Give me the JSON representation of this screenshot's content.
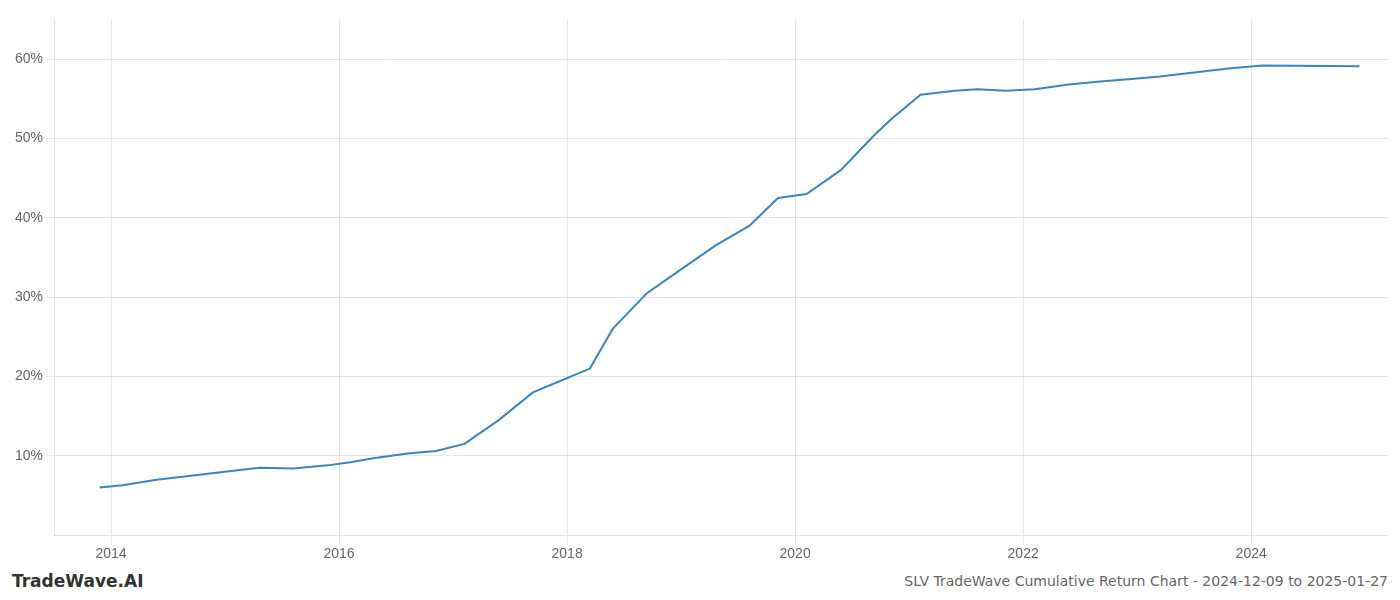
{
  "chart_data": {
    "type": "line",
    "title": "SLV TradeWave Cumulative Return Chart - 2024-12-09 to 2025-01-27",
    "annotations": [
      "TradeWave.AI"
    ],
    "x": [
      2013.9,
      2014.1,
      2014.4,
      2014.7,
      2015.0,
      2015.3,
      2015.6,
      2015.9,
      2016.1,
      2016.3,
      2016.6,
      2016.85,
      2017.1,
      2017.4,
      2017.7,
      2017.95,
      2018.2,
      2018.4,
      2018.7,
      2019.0,
      2019.3,
      2019.6,
      2019.85,
      2020.1,
      2020.4,
      2020.7,
      2020.85,
      2021.1,
      2021.4,
      2021.6,
      2021.85,
      2022.1,
      2022.4,
      2022.7,
      2022.95,
      2023.2,
      2023.5,
      2023.8,
      2024.1,
      2024.95
    ],
    "values": [
      6.0,
      6.3,
      7.0,
      7.5,
      8.0,
      8.5,
      8.4,
      8.8,
      9.2,
      9.7,
      10.3,
      10.6,
      11.5,
      14.5,
      18.0,
      19.5,
      21.0,
      26.0,
      30.5,
      33.5,
      36.5,
      39.0,
      42.5,
      43.0,
      46.0,
      50.5,
      52.5,
      55.5,
      56.0,
      56.2,
      56.0,
      56.2,
      56.8,
      57.2,
      57.5,
      57.8,
      58.3,
      58.8,
      59.2,
      59.1
    ],
    "color": "#3a85c0",
    "xlim": [
      2013.5,
      2025.2
    ],
    "ylim": [
      0,
      65
    ],
    "xticks": [
      2014,
      2016,
      2018,
      2020,
      2022,
      2024
    ],
    "yticks": [
      {
        "value": 10,
        "label": "10%"
      },
      {
        "value": 20,
        "label": "20%"
      },
      {
        "value": 30,
        "label": "30%"
      },
      {
        "value": 40,
        "label": "40%"
      },
      {
        "value": 50,
        "label": "50%"
      },
      {
        "value": 60,
        "label": "60%"
      }
    ],
    "grid": true
  }
}
